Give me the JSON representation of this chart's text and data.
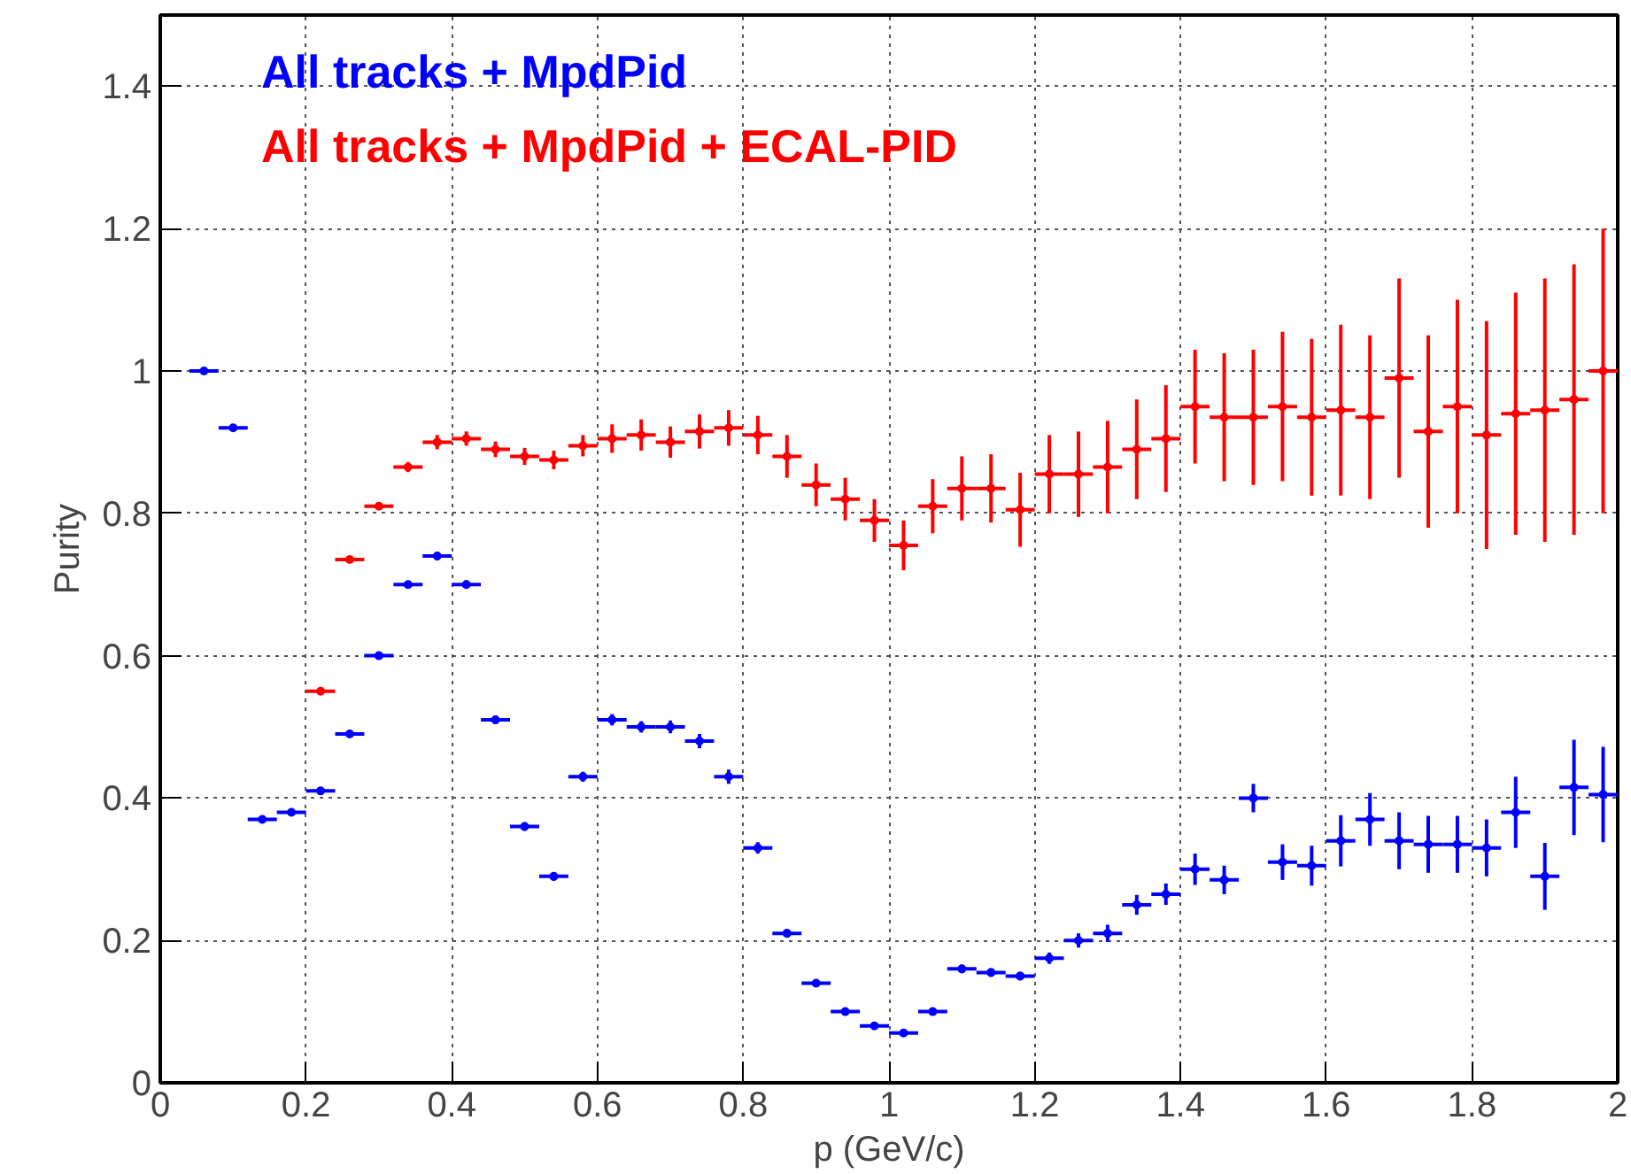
{
  "chart_data": {
    "type": "scatter",
    "ylabel": "Purity",
    "xlabel": "p (GeV/c)",
    "xlim": [
      0,
      2
    ],
    "ylim": [
      0,
      1.5
    ],
    "xticks": [
      0,
      0.2,
      0.4,
      0.6,
      0.8,
      1,
      1.2,
      1.4,
      1.6,
      1.8,
      2
    ],
    "yticks": [
      0,
      0.2,
      0.4,
      0.6,
      0.8,
      1,
      1.2,
      1.4
    ],
    "grid": true,
    "marker": "circle",
    "series": [
      {
        "name": "All tracks + MpdPid",
        "color": "#0000ff",
        "x": [
          0.06,
          0.1,
          0.14,
          0.18,
          0.22,
          0.26,
          0.3,
          0.34,
          0.38,
          0.42,
          0.46,
          0.5,
          0.54,
          0.58,
          0.62,
          0.66,
          0.7,
          0.74,
          0.78,
          0.82,
          0.86,
          0.9,
          0.94,
          0.98,
          1.02,
          1.06,
          1.1,
          1.14,
          1.18,
          1.22,
          1.26,
          1.3,
          1.34,
          1.38,
          1.42,
          1.46,
          1.5,
          1.54,
          1.58,
          1.62,
          1.66,
          1.7,
          1.74,
          1.78,
          1.82,
          1.86,
          1.9,
          1.94,
          1.98
        ],
        "values": [
          1.0,
          0.92,
          0.37,
          0.38,
          0.41,
          0.49,
          0.6,
          0.7,
          0.74,
          0.7,
          0.51,
          0.36,
          0.29,
          0.43,
          0.51,
          0.5,
          0.5,
          0.48,
          0.43,
          0.33,
          0.21,
          0.14,
          0.1,
          0.08,
          0.07,
          0.1,
          0.16,
          0.155,
          0.15,
          0.175,
          0.2,
          0.21,
          0.25,
          0.265,
          0.3,
          0.285,
          0.4,
          0.31,
          0.305,
          0.34,
          0.37,
          0.34,
          0.335,
          0.335,
          0.33,
          0.38,
          0.29,
          0.415,
          0.405
        ],
        "errors": [
          0.003,
          0.003,
          0.003,
          0.003,
          0.004,
          0.004,
          0.004,
          0.005,
          0.006,
          0.006,
          0.006,
          0.006,
          0.006,
          0.007,
          0.008,
          0.008,
          0.009,
          0.01,
          0.01,
          0.008,
          0.006,
          0.005,
          0.005,
          0.004,
          0.004,
          0.004,
          0.006,
          0.006,
          0.006,
          0.008,
          0.01,
          0.012,
          0.014,
          0.015,
          0.022,
          0.02,
          0.02,
          0.025,
          0.028,
          0.036,
          0.037,
          0.04,
          0.04,
          0.04,
          0.04,
          0.05,
          0.047,
          0.067,
          0.067
        ],
        "xerrors": [
          0.02,
          0.02,
          0.02,
          0.02,
          0.02,
          0.02,
          0.02,
          0.02,
          0.02,
          0.02,
          0.02,
          0.02,
          0.02,
          0.02,
          0.02,
          0.02,
          0.02,
          0.02,
          0.02,
          0.02,
          0.02,
          0.02,
          0.02,
          0.02,
          0.02,
          0.02,
          0.02,
          0.02,
          0.02,
          0.02,
          0.02,
          0.02,
          0.02,
          0.02,
          0.02,
          0.02,
          0.02,
          0.02,
          0.02,
          0.02,
          0.02,
          0.02,
          0.02,
          0.02,
          0.02,
          0.02,
          0.02,
          0.02,
          0.02
        ]
      },
      {
        "name": "All tracks + MpdPid + ECAL-PID",
        "color": "#ff0000",
        "x": [
          0.22,
          0.26,
          0.3,
          0.34,
          0.38,
          0.42,
          0.46,
          0.5,
          0.54,
          0.58,
          0.62,
          0.66,
          0.7,
          0.74,
          0.78,
          0.82,
          0.86,
          0.9,
          0.94,
          0.98,
          1.02,
          1.06,
          1.1,
          1.14,
          1.18,
          1.22,
          1.26,
          1.3,
          1.34,
          1.38,
          1.42,
          1.46,
          1.5,
          1.54,
          1.58,
          1.62,
          1.66,
          1.7,
          1.74,
          1.78,
          1.82,
          1.86,
          1.9,
          1.94,
          1.98
        ],
        "values": [
          0.55,
          0.735,
          0.81,
          0.865,
          0.9,
          0.905,
          0.89,
          0.88,
          0.875,
          0.895,
          0.905,
          0.91,
          0.9,
          0.915,
          0.92,
          0.91,
          0.88,
          0.84,
          0.82,
          0.79,
          0.755,
          0.81,
          0.835,
          0.835,
          0.805,
          0.855,
          0.855,
          0.865,
          0.89,
          0.905,
          0.95,
          0.935,
          0.935,
          0.95,
          0.935,
          0.945,
          0.935,
          0.99,
          0.915,
          0.95,
          0.91,
          0.94,
          0.945,
          0.96,
          1.0
        ],
        "errors": [
          0.003,
          0.004,
          0.005,
          0.007,
          0.01,
          0.01,
          0.011,
          0.012,
          0.013,
          0.015,
          0.02,
          0.022,
          0.022,
          0.024,
          0.025,
          0.027,
          0.03,
          0.03,
          0.03,
          0.03,
          0.035,
          0.038,
          0.045,
          0.048,
          0.052,
          0.055,
          0.06,
          0.065,
          0.07,
          0.075,
          0.08,
          0.09,
          0.095,
          0.105,
          0.11,
          0.12,
          0.115,
          0.14,
          0.135,
          0.15,
          0.16,
          0.17,
          0.185,
          0.19,
          0.2
        ],
        "xerrors": [
          0.02,
          0.02,
          0.02,
          0.02,
          0.02,
          0.02,
          0.02,
          0.02,
          0.02,
          0.02,
          0.02,
          0.02,
          0.02,
          0.02,
          0.02,
          0.02,
          0.02,
          0.02,
          0.02,
          0.02,
          0.02,
          0.02,
          0.02,
          0.02,
          0.02,
          0.02,
          0.02,
          0.02,
          0.02,
          0.02,
          0.02,
          0.02,
          0.02,
          0.02,
          0.02,
          0.02,
          0.02,
          0.02,
          0.02,
          0.02,
          0.02,
          0.02,
          0.02,
          0.02,
          0.02
        ]
      }
    ]
  }
}
